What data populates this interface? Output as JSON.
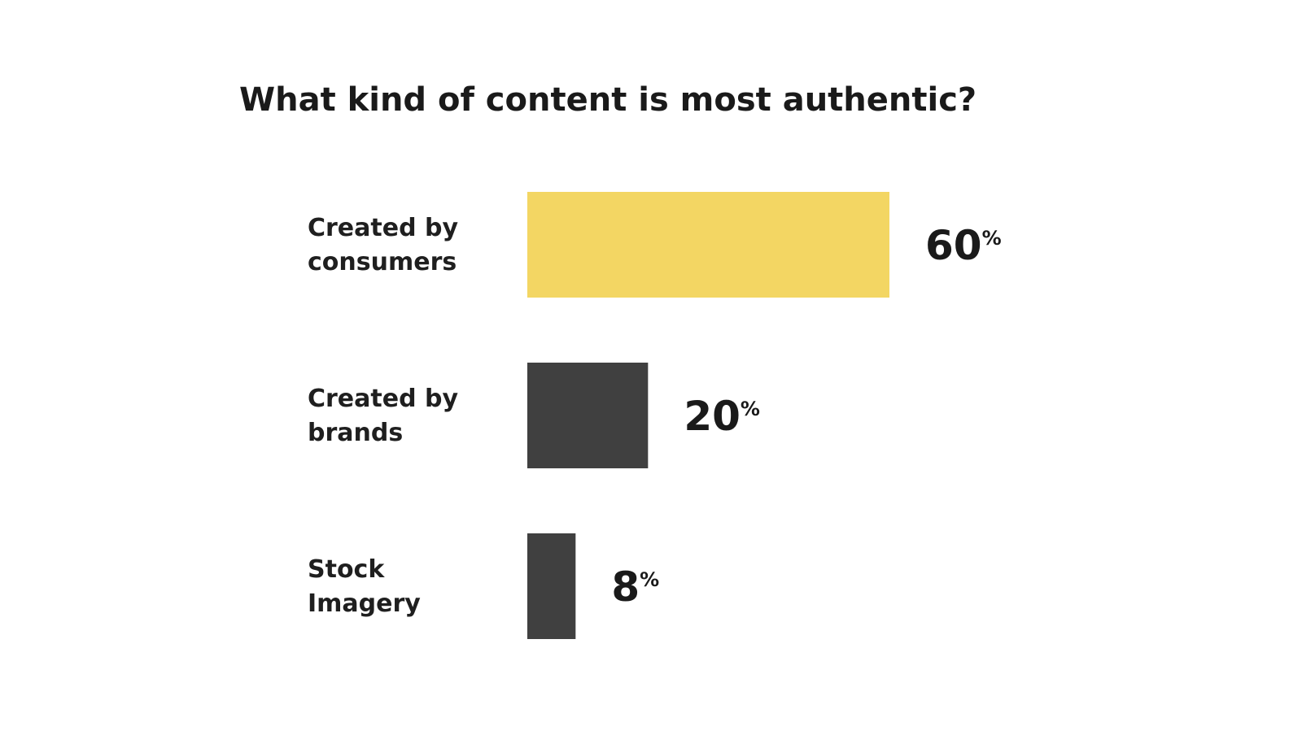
{
  "chart_data": {
    "type": "bar",
    "orientation": "horizontal",
    "title": "What kind of content is most authentic?",
    "categories": [
      [
        "Created by",
        "consumers"
      ],
      [
        "Created by",
        "brands"
      ],
      [
        "Stock",
        "Imagery"
      ]
    ],
    "values": [
      60,
      20,
      8
    ],
    "value_unit": "%",
    "colors": [
      "#f3d663",
      "#404040",
      "#404040"
    ],
    "xlim": [
      0,
      60
    ],
    "grid": false,
    "legend": "none"
  }
}
